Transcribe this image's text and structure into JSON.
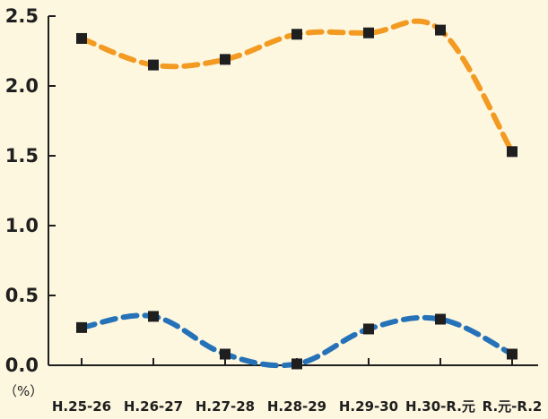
{
  "chart_data": {
    "type": "line",
    "categories": [
      "H.25-26",
      "H.26-27",
      "H.27-28",
      "H.28-29",
      "H.29-30",
      "H.30-R.元",
      "R.元-R.2"
    ],
    "ylim": [
      0,
      2.5
    ],
    "yticks": [
      "0.0",
      "0.5",
      "1.0",
      "1.5",
      "2.0",
      "2.5"
    ],
    "unit_label": "（%）",
    "grid": false,
    "legend": "none",
    "series": [
      {
        "color": "#f39a22",
        "values": [
          2.34,
          2.15,
          2.19,
          2.37,
          2.38,
          2.4,
          1.53
        ]
      },
      {
        "color": "#2572b8",
        "values": [
          0.27,
          0.35,
          0.08,
          0.01,
          0.26,
          0.33,
          0.08
        ]
      }
    ],
    "marker_color": "#1f1f1f",
    "axis_color": "#1f1f1f"
  }
}
